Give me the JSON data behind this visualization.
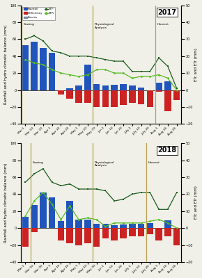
{
  "x_labels": [
    "Mar 1",
    "Mar 10",
    "Mar 20",
    "Apr 1",
    "Apr 10",
    "Apr 20",
    "May 1",
    "May 10",
    "May 20",
    "Jun 1",
    "Jun 10",
    "Jun 20",
    "July 1",
    "July 10",
    "July 20",
    "Aug 1",
    "Aug 10",
    "Aug 20"
  ],
  "2017": {
    "rainfall": [
      53,
      57,
      50,
      44,
      0,
      2,
      5,
      30,
      7,
      5,
      6,
      7,
      5,
      3,
      0,
      9,
      10,
      0
    ],
    "deficiency": [
      0,
      0,
      0,
      0,
      -5,
      -10,
      -15,
      -15,
      -20,
      -20,
      -20,
      -18,
      -15,
      -17,
      -20,
      -2,
      -25,
      -12
    ],
    "ETP": [
      60,
      64,
      58,
      46,
      44,
      40,
      40,
      40,
      38,
      36,
      34,
      34,
      22,
      22,
      22,
      38,
      28,
      2
    ],
    "ETR": [
      36,
      32,
      30,
      24,
      20,
      18,
      16,
      18,
      24,
      24,
      20,
      20,
      14,
      16,
      16,
      18,
      14,
      0
    ],
    "sowing_idx": 0,
    "physio_idx": 8,
    "harvest_idx": 15
  },
  "2018": {
    "rainfall": [
      13,
      27,
      42,
      36,
      8,
      32,
      10,
      10,
      5,
      5,
      3,
      4,
      5,
      5,
      6,
      0,
      9,
      0
    ],
    "deficiency": [
      -22,
      -5,
      0,
      0,
      -15,
      -18,
      -20,
      -18,
      -22,
      -12,
      -15,
      -12,
      -10,
      -10,
      -7,
      -15,
      -10,
      -20
    ],
    "ETP": [
      54,
      64,
      70,
      54,
      50,
      52,
      46,
      46,
      46,
      44,
      32,
      34,
      40,
      42,
      42,
      22,
      22,
      42
    ],
    "ETR": [
      14,
      32,
      42,
      28,
      10,
      26,
      10,
      12,
      10,
      2,
      6,
      6,
      6,
      6,
      8,
      10,
      6,
      0
    ],
    "sowing_idx": 1,
    "physio_idx": 8,
    "harvest_idx": 14
  },
  "bar_blue": "#2255bb",
  "bar_red": "#cc2222",
  "bar_gray": "#7788aa",
  "line_ETP_color": "#1a5c1a",
  "line_ETR_color": "#55bb22",
  "vline_color": "#b8a050",
  "ylim_left": [
    -40,
    100
  ],
  "ylim_right": [
    -20,
    50
  ],
  "background": "#f0f0e8"
}
